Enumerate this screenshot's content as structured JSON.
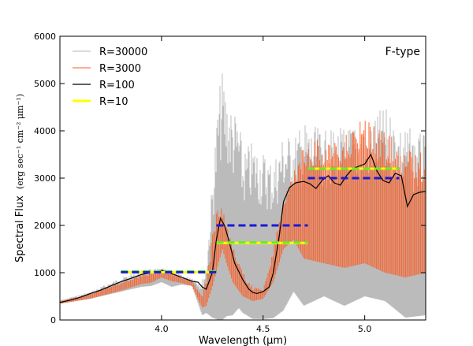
{
  "chart_data": {
    "type": "line",
    "annotation": "F-type",
    "xlabel": "Wavelength (μm)",
    "ylabel_main": "Spectral Flux",
    "ylabel_units": "(erg sec⁻¹ cm⁻² μm⁻¹)",
    "xlim": [
      3.5,
      5.3
    ],
    "ylim": [
      0,
      6000
    ],
    "x_ticks": [
      4.0,
      4.5,
      5.0
    ],
    "x_tick_labels": [
      "4.0",
      "4.5",
      "5.0"
    ],
    "y_ticks": [
      0,
      1000,
      2000,
      3000,
      4000,
      5000,
      6000
    ],
    "y_tick_labels": [
      "0",
      "1000",
      "2000",
      "3000",
      "4000",
      "5000",
      "6000"
    ],
    "legend_position": "top-left",
    "colors": {
      "r30000": "#b4b4b4",
      "r3000": "#ff5a1e",
      "r100": "#000000",
      "r10": "#ffff00",
      "green_bars": "#66ee22",
      "blue_bars": "#1a1ad6"
    },
    "series": [
      {
        "name": "R=30000",
        "style": "dense spectral lines (envelope)",
        "x": [
          3.5,
          3.65,
          3.8,
          3.9,
          3.95,
          4.0,
          4.05,
          4.1,
          4.15,
          4.2,
          4.22,
          4.25,
          4.28,
          4.3,
          4.32,
          4.35,
          4.38,
          4.4,
          4.45,
          4.5,
          4.55,
          4.6,
          4.65,
          4.7,
          4.8,
          4.9,
          5.0,
          5.1,
          5.2,
          5.3
        ],
        "upper": [
          420,
          600,
          900,
          1050,
          1080,
          1100,
          1050,
          950,
          900,
          850,
          1200,
          3000,
          4800,
          5300,
          4900,
          4500,
          4300,
          3600,
          3800,
          3600,
          3400,
          4000,
          3900,
          4200,
          4000,
          4100,
          4200,
          4500,
          4100,
          3900
        ],
        "lower": [
          350,
          450,
          600,
          700,
          720,
          800,
          700,
          750,
          720,
          100,
          150,
          50,
          0,
          0,
          80,
          100,
          250,
          150,
          20,
          20,
          40,
          200,
          600,
          300,
          500,
          300,
          500,
          400,
          50,
          100
        ]
      },
      {
        "name": "R=3000",
        "style": "dense spectral lines (envelope)",
        "x": [
          3.5,
          3.65,
          3.8,
          3.9,
          3.95,
          4.0,
          4.05,
          4.1,
          4.15,
          4.2,
          4.22,
          4.25,
          4.28,
          4.3,
          4.32,
          4.35,
          4.4,
          4.45,
          4.5,
          4.55,
          4.6,
          4.65,
          4.7,
          4.8,
          4.9,
          5.0,
          5.1,
          5.2,
          5.3
        ],
        "upper": [
          400,
          560,
          800,
          950,
          1000,
          1060,
          1000,
          900,
          850,
          500,
          900,
          1800,
          2500,
          2400,
          2000,
          1600,
          1000,
          700,
          650,
          1500,
          2500,
          3200,
          3700,
          3900,
          3900,
          4300,
          4000,
          3700,
          3500
        ],
        "lower": [
          340,
          450,
          620,
          760,
          790,
          900,
          820,
          780,
          720,
          260,
          300,
          700,
          1200,
          1500,
          1200,
          800,
          500,
          400,
          450,
          800,
          1500,
          1700,
          1300,
          1200,
          1100,
          1200,
          1000,
          900,
          1000
        ]
      },
      {
        "name": "R=100",
        "style": "smooth line",
        "x": [
          3.5,
          3.55,
          3.6,
          3.65,
          3.7,
          3.75,
          3.8,
          3.85,
          3.9,
          3.95,
          4.0,
          4.05,
          4.1,
          4.15,
          4.18,
          4.2,
          4.22,
          4.25,
          4.27,
          4.29,
          4.31,
          4.33,
          4.36,
          4.4,
          4.43,
          4.45,
          4.47,
          4.5,
          4.53,
          4.55,
          4.58,
          4.6,
          4.63,
          4.66,
          4.7,
          4.73,
          4.76,
          4.79,
          4.82,
          4.85,
          4.88,
          4.91,
          4.94,
          4.97,
          5.0,
          5.03,
          5.06,
          5.09,
          5.12,
          5.15,
          5.18,
          5.21,
          5.24,
          5.27,
          5.3
        ],
        "y": [
          370,
          420,
          480,
          560,
          630,
          720,
          810,
          880,
          960,
          1000,
          1050,
          980,
          900,
          820,
          800,
          700,
          650,
          1000,
          1700,
          2150,
          2000,
          1700,
          1200,
          850,
          650,
          580,
          560,
          600,
          700,
          1000,
          1800,
          2500,
          2800,
          2900,
          2930,
          2880,
          2780,
          2950,
          3050,
          2900,
          2850,
          3050,
          3200,
          3250,
          3300,
          3500,
          3150,
          2950,
          2900,
          3100,
          3050,
          2400,
          2650,
          2700,
          2720
        ]
      },
      {
        "name": "R=10",
        "style": "horizontal segments (yellow, green/blue dashed overlays)",
        "bins": [
          {
            "x0": 3.8,
            "x1": 4.27,
            "y": 1010
          },
          {
            "x0": 4.27,
            "x1": 4.72,
            "y": 1630
          },
          {
            "x0": 4.72,
            "x1": 5.17,
            "y": 3200
          }
        ]
      }
    ],
    "overlays": [
      {
        "color_key": "green_bars",
        "x0": 3.8,
        "x1": 4.27,
        "y": 1030
      },
      {
        "color_key": "blue_bars",
        "x0": 3.8,
        "x1": 4.27,
        "y": 1010
      },
      {
        "color_key": "green_bars",
        "x0": 4.27,
        "x1": 4.72,
        "y": 1640
      },
      {
        "color_key": "blue_bars",
        "x0": 4.27,
        "x1": 4.72,
        "y": 2000
      },
      {
        "color_key": "green_bars",
        "x0": 4.72,
        "x1": 5.17,
        "y": 3200
      },
      {
        "color_key": "blue_bars",
        "x0": 4.72,
        "x1": 5.17,
        "y": 3000
      }
    ]
  }
}
